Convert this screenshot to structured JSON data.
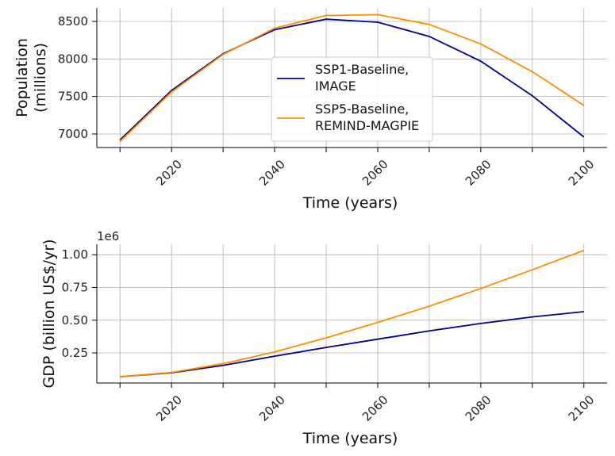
{
  "chart_data": [
    {
      "type": "line",
      "x": [
        2010,
        2020,
        2030,
        2040,
        2050,
        2060,
        2070,
        2080,
        2090,
        2100
      ],
      "series": [
        {
          "name": "SSP1-Baseline,\nIMAGE",
          "color": "#00008b",
          "values": [
            6920,
            7580,
            8070,
            8390,
            8530,
            8490,
            8300,
            7970,
            7510,
            6960
          ]
        },
        {
          "name": "SSP5-Baseline,\nREMIND-MAGPIE",
          "color": "#ff8c00",
          "values": [
            6900,
            7560,
            8060,
            8410,
            8580,
            8590,
            8460,
            8200,
            7830,
            7380
          ]
        }
      ],
      "xlabel": "Time (years)",
      "ylabel": "Population\n(millions)",
      "xticks": [
        2020,
        2040,
        2060,
        2080,
        2100
      ],
      "yticks": [
        7000,
        7500,
        8000,
        8500
      ],
      "xlim": [
        2005.5,
        2104.5
      ],
      "ylim": [
        6820,
        8680
      ],
      "grid": true,
      "legend": "center"
    },
    {
      "type": "line",
      "x": [
        2010,
        2020,
        2030,
        2040,
        2050,
        2060,
        2070,
        2080,
        2090,
        2100
      ],
      "series": [
        {
          "name": "SSP1-Baseline,\nIMAGE",
          "color": "#00008b",
          "values": [
            0.068,
            0.098,
            0.155,
            0.225,
            0.292,
            0.355,
            0.418,
            0.475,
            0.525,
            0.565
          ]
        },
        {
          "name": "SSP5-Baseline,\nREMIND-MAGPIE",
          "color": "#ff8c00",
          "values": [
            0.068,
            0.101,
            0.168,
            0.258,
            0.365,
            0.483,
            0.607,
            0.742,
            0.885,
            1.033
          ]
        }
      ],
      "xlabel": "Time (years)",
      "ylabel": "GDP (billion US$/yr)",
      "offset_label": "1e6",
      "xticks": [
        2020,
        2040,
        2060,
        2080,
        2100
      ],
      "yticks": [
        0.25,
        0.5,
        0.75,
        1.0
      ],
      "ytick_labels": [
        "0.25",
        "0.50",
        "0.75",
        "1.00"
      ],
      "xlim": [
        2005.5,
        2104.5
      ],
      "ylim": [
        0.02,
        1.08
      ],
      "grid": true,
      "legend": "none"
    }
  ]
}
